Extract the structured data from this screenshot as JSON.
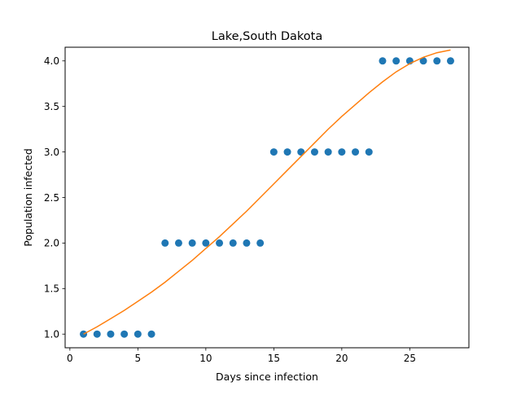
{
  "chart_data": {
    "type": "scatter",
    "title": "Lake,South Dakota",
    "xlabel": "Days since infection",
    "ylabel": "Population infected",
    "xlim": [
      -0.35,
      29.35
    ],
    "ylim": [
      0.85,
      4.15
    ],
    "xticks": [
      0,
      5,
      10,
      15,
      20,
      25
    ],
    "yticks": [
      1.0,
      1.5,
      2.0,
      2.5,
      3.0,
      3.5,
      4.0
    ],
    "grid": false,
    "series": [
      {
        "kind": "points",
        "color": "#1f77b4",
        "x": [
          1,
          2,
          3,
          4,
          5,
          6,
          7,
          8,
          9,
          10,
          11,
          12,
          13,
          14,
          15,
          16,
          17,
          18,
          19,
          20,
          21,
          22,
          23,
          24,
          25,
          26,
          27,
          28
        ],
        "y": [
          1,
          1,
          1,
          1,
          1,
          1,
          2,
          2,
          2,
          2,
          2,
          2,
          2,
          2,
          3,
          3,
          3,
          3,
          3,
          3,
          3,
          3,
          4,
          4,
          4,
          4,
          4,
          4
        ]
      },
      {
        "kind": "fit-line",
        "color": "#ff7f0e",
        "x": [
          1,
          2,
          3,
          4,
          5,
          6,
          7,
          8,
          9,
          10,
          11,
          12,
          13,
          14,
          15,
          16,
          17,
          18,
          19,
          20,
          21,
          22,
          23,
          24,
          25,
          26,
          27,
          28
        ],
        "y": [
          1.0,
          1.08,
          1.17,
          1.26,
          1.36,
          1.46,
          1.57,
          1.69,
          1.81,
          1.94,
          2.07,
          2.21,
          2.35,
          2.5,
          2.65,
          2.8,
          2.95,
          3.1,
          3.25,
          3.39,
          3.52,
          3.65,
          3.77,
          3.88,
          3.97,
          4.04,
          4.09,
          4.12
        ]
      }
    ]
  }
}
